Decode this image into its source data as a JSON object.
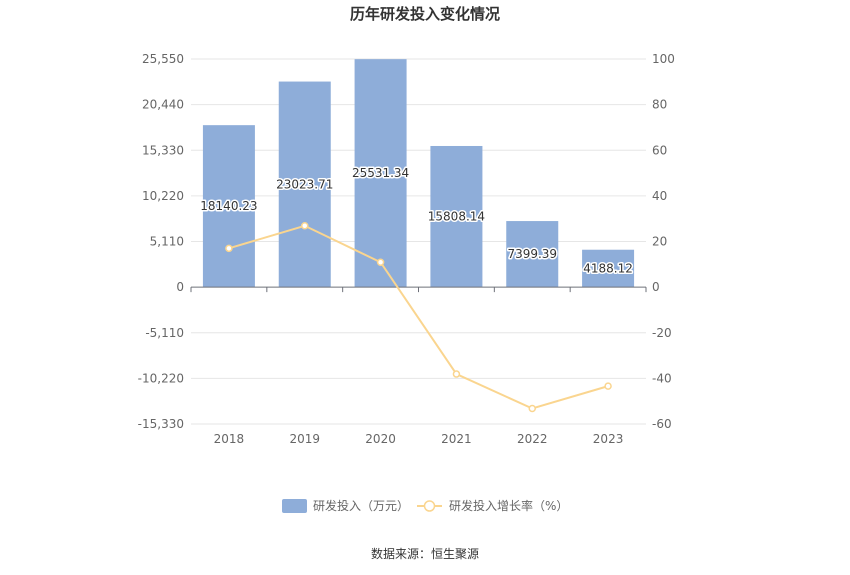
{
  "chart_data": {
    "type": "bar",
    "title": "历年研发投入变化情况",
    "categories": [
      "2018",
      "2019",
      "2020",
      "2021",
      "2022",
      "2023"
    ],
    "series": [
      {
        "name": "研发投入（万元）",
        "type": "bar",
        "axis": "left",
        "values": [
          18140.23,
          23023.71,
          25531.34,
          15808.14,
          7399.39,
          4188.12
        ],
        "labels": [
          "18140.23",
          "23023.71",
          "25531.34",
          "15808.14",
          "7399.39",
          "4188.12"
        ],
        "color": "#8eadd9"
      },
      {
        "name": "研发投入增长率（%）",
        "type": "line",
        "axis": "right",
        "values": [
          17.0,
          26.9,
          10.9,
          -38.1,
          -53.2,
          -43.4
        ],
        "color": "#fad58f"
      }
    ],
    "y_left": {
      "ticks": [
        "25,550",
        "20,440",
        "15,330",
        "10,220",
        "5,110",
        "0",
        "-5,110",
        "-10,220",
        "-15,330"
      ],
      "tick_values": [
        25550,
        20440,
        15330,
        10220,
        5110,
        0,
        -5110,
        -10220,
        -15330
      ],
      "ylim": [
        -15330,
        25550
      ]
    },
    "y_right": {
      "ticks": [
        "100",
        "80",
        "60",
        "40",
        "20",
        "0",
        "-20",
        "-40",
        "-60"
      ],
      "tick_values": [
        100,
        80,
        60,
        40,
        20,
        0,
        -20,
        -40,
        -60
      ],
      "ylim": [
        -60,
        100
      ]
    },
    "grid": true,
    "legend_position": "bottom"
  },
  "footer": {
    "source": "数据来源：恒生聚源"
  }
}
